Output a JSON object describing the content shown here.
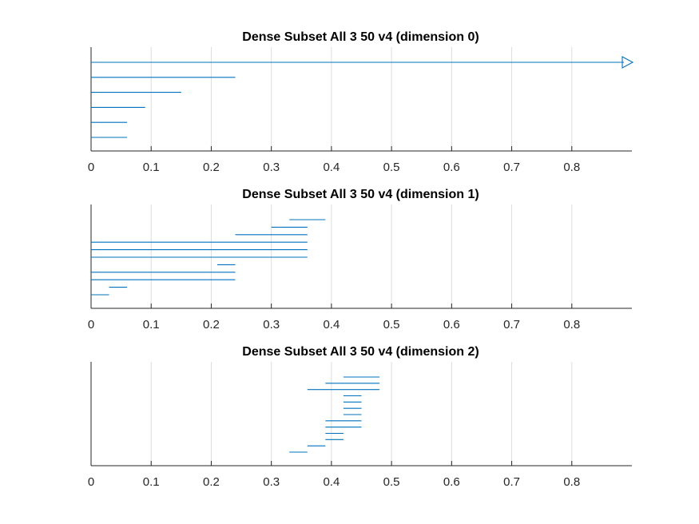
{
  "chart_data": [
    {
      "type": "barcode",
      "title": "Dense Subset All 3 50 v4 (dimension 0)",
      "xlim": [
        0,
        0.9
      ],
      "xticks": [
        "0",
        "0.1",
        "0.2",
        "0.3",
        "0.4",
        "0.5",
        "0.6",
        "0.7",
        "0.8"
      ],
      "grid": "vertical",
      "intervals": [
        {
          "birth": 0,
          "death": null
        },
        {
          "birth": 0,
          "death": 0.24
        },
        {
          "birth": 0,
          "death": 0.15
        },
        {
          "birth": 0,
          "death": 0.09
        },
        {
          "birth": 0,
          "death": 0.06
        },
        {
          "birth": 0,
          "death": 0.06
        }
      ]
    },
    {
      "type": "barcode",
      "title": "Dense Subset All 3 50 v4 (dimension 1)",
      "xlim": [
        0,
        0.9
      ],
      "xticks": [
        "0",
        "0.1",
        "0.2",
        "0.3",
        "0.4",
        "0.5",
        "0.6",
        "0.7",
        "0.8"
      ],
      "grid": "vertical",
      "intervals": [
        {
          "birth": 0.33,
          "death": 0.39
        },
        {
          "birth": 0.3,
          "death": 0.36
        },
        {
          "birth": 0.24,
          "death": 0.36
        },
        {
          "birth": 0,
          "death": 0.36
        },
        {
          "birth": 0,
          "death": 0.36
        },
        {
          "birth": 0,
          "death": 0.36
        },
        {
          "birth": 0.21,
          "death": 0.24
        },
        {
          "birth": 0,
          "death": 0.24
        },
        {
          "birth": 0,
          "death": 0.24
        },
        {
          "birth": 0.03,
          "death": 0.06
        },
        {
          "birth": 0,
          "death": 0.03
        }
      ]
    },
    {
      "type": "barcode",
      "title": "Dense Subset All 3 50 v4 (dimension 2)",
      "xlim": [
        0,
        0.9
      ],
      "xticks": [
        "0",
        "0.1",
        "0.2",
        "0.3",
        "0.4",
        "0.5",
        "0.6",
        "0.7",
        "0.8"
      ],
      "grid": "vertical",
      "intervals": [
        {
          "birth": 0.42,
          "death": 0.48
        },
        {
          "birth": 0.39,
          "death": 0.48
        },
        {
          "birth": 0.36,
          "death": 0.48
        },
        {
          "birth": 0.42,
          "death": 0.45
        },
        {
          "birth": 0.42,
          "death": 0.45
        },
        {
          "birth": 0.42,
          "death": 0.45
        },
        {
          "birth": 0.42,
          "death": 0.45
        },
        {
          "birth": 0.39,
          "death": 0.45
        },
        {
          "birth": 0.39,
          "death": 0.45
        },
        {
          "birth": 0.39,
          "death": 0.42
        },
        {
          "birth": 0.39,
          "death": 0.42
        },
        {
          "birth": 0.36,
          "death": 0.39
        },
        {
          "birth": 0.33,
          "death": 0.36
        }
      ]
    }
  ],
  "colors": {
    "line": "#0072BD",
    "axis": "#262626",
    "grid": "#dcdcdc"
  }
}
